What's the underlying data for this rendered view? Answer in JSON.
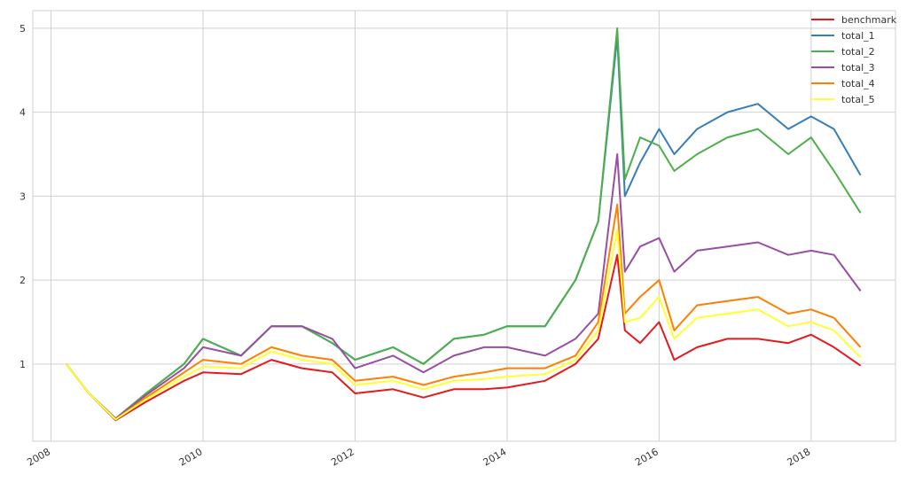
{
  "chart_data": {
    "type": "line",
    "x": [
      2008.2,
      2008.5,
      2008.85,
      2009.25,
      2009.75,
      2010.0,
      2010.5,
      2010.9,
      2011.3,
      2011.7,
      2012.0,
      2012.5,
      2012.9,
      2013.3,
      2013.7,
      2014.0,
      2014.5,
      2014.9,
      2015.2,
      2015.45,
      2015.55,
      2015.75,
      2016.0,
      2016.2,
      2016.5,
      2016.9,
      2017.3,
      2017.7,
      2018.0,
      2018.3,
      2018.65
    ],
    "series": [
      {
        "name": "benchmark",
        "color": "#e41a1c",
        "values": [
          1.0,
          0.65,
          0.33,
          0.55,
          0.8,
          0.9,
          0.88,
          1.05,
          0.95,
          0.9,
          0.65,
          0.7,
          0.6,
          0.7,
          0.7,
          0.72,
          0.8,
          1.0,
          1.3,
          2.3,
          1.4,
          1.25,
          1.5,
          1.05,
          1.2,
          1.3,
          1.3,
          1.25,
          1.35,
          1.2,
          0.98
        ]
      },
      {
        "name": "total_1",
        "color": "#377eb8",
        "values": [
          1.0,
          0.65,
          0.35,
          0.65,
          1.0,
          1.3,
          1.1,
          1.45,
          1.45,
          1.25,
          1.05,
          1.2,
          1.0,
          1.3,
          1.35,
          1.45,
          1.45,
          2.0,
          2.7,
          4.9,
          3.0,
          3.4,
          3.8,
          3.5,
          3.8,
          4.0,
          4.1,
          3.8,
          3.95,
          3.8,
          3.25
        ]
      },
      {
        "name": "total_2",
        "color": "#4daf4a",
        "values": [
          1.0,
          0.65,
          0.35,
          0.65,
          1.0,
          1.3,
          1.1,
          1.45,
          1.45,
          1.25,
          1.05,
          1.2,
          1.0,
          1.3,
          1.35,
          1.45,
          1.45,
          2.0,
          2.7,
          5.0,
          3.2,
          3.7,
          3.6,
          3.3,
          3.5,
          3.7,
          3.8,
          3.5,
          3.7,
          3.3,
          2.8
        ]
      },
      {
        "name": "total_3",
        "color": "#984ea3",
        "values": [
          1.0,
          0.65,
          0.35,
          0.63,
          0.95,
          1.2,
          1.1,
          1.45,
          1.45,
          1.3,
          0.95,
          1.1,
          0.9,
          1.1,
          1.2,
          1.2,
          1.1,
          1.3,
          1.6,
          3.5,
          2.1,
          2.4,
          2.5,
          2.1,
          2.35,
          2.4,
          2.45,
          2.3,
          2.35,
          2.3,
          1.87
        ]
      },
      {
        "name": "total_4",
        "color": "#ff7f00",
        "values": [
          1.0,
          0.65,
          0.34,
          0.6,
          0.9,
          1.05,
          1.0,
          1.2,
          1.1,
          1.05,
          0.8,
          0.85,
          0.75,
          0.85,
          0.9,
          0.95,
          0.95,
          1.1,
          1.5,
          2.9,
          1.6,
          1.8,
          2.0,
          1.4,
          1.7,
          1.75,
          1.8,
          1.6,
          1.65,
          1.55,
          1.2
        ]
      },
      {
        "name": "total_5",
        "color": "#ffff33",
        "values": [
          1.0,
          0.65,
          0.34,
          0.58,
          0.85,
          0.97,
          0.95,
          1.15,
          1.05,
          1.0,
          0.75,
          0.8,
          0.7,
          0.8,
          0.82,
          0.85,
          0.88,
          1.05,
          1.4,
          2.6,
          1.5,
          1.55,
          1.8,
          1.3,
          1.55,
          1.6,
          1.65,
          1.45,
          1.5,
          1.4,
          1.08
        ]
      }
    ],
    "xlim": [
      2007.76,
      2019.11
    ],
    "xticks": [
      2008,
      2010,
      2012,
      2014,
      2016,
      2018
    ],
    "ylim": [
      0.08,
      5.21
    ],
    "yticks": [
      1,
      2,
      3,
      4,
      5
    ],
    "grid": true,
    "legend": "upper-right"
  }
}
